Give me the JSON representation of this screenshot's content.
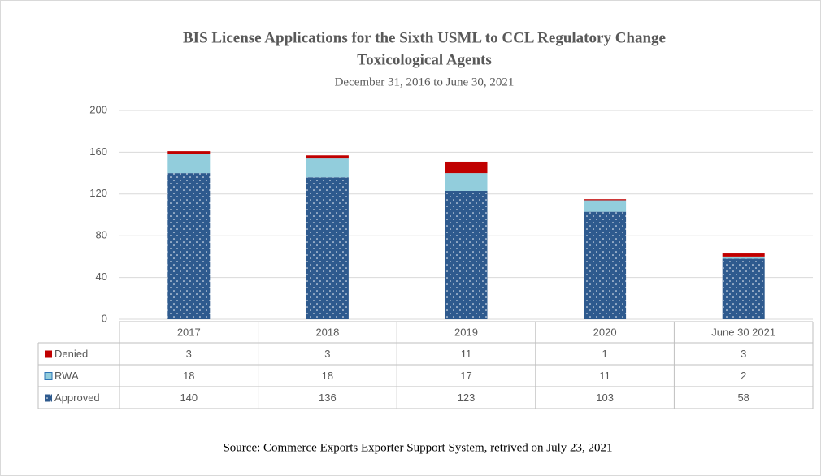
{
  "chart_data": {
    "type": "stacked_bar",
    "title": [
      "BIS License Applications for the Sixth USML to CCL Regulatory Change",
      "Toxicological Agents"
    ],
    "subtitle": "December 31, 2016 to June 30, 2021",
    "categories": [
      "2017",
      "2018",
      "2019",
      "2020",
      "June 30 2021"
    ],
    "series": [
      {
        "name": "Approved",
        "color": "#2e5a8e",
        "values": [
          140,
          136,
          123,
          103,
          58
        ]
      },
      {
        "name": "RWA",
        "color": "#92cddc",
        "values": [
          18,
          18,
          17,
          11,
          2
        ]
      },
      {
        "name": "Denied",
        "color": "#c00000",
        "values": [
          3,
          3,
          11,
          1,
          3
        ]
      }
    ],
    "ylim": [
      0,
      200
    ],
    "yticks": [
      0,
      40,
      80,
      120,
      160,
      200
    ],
    "grid": true,
    "source": "Source: Commerce Exports Exporter Support System,  retrived on July 23, 2021"
  }
}
